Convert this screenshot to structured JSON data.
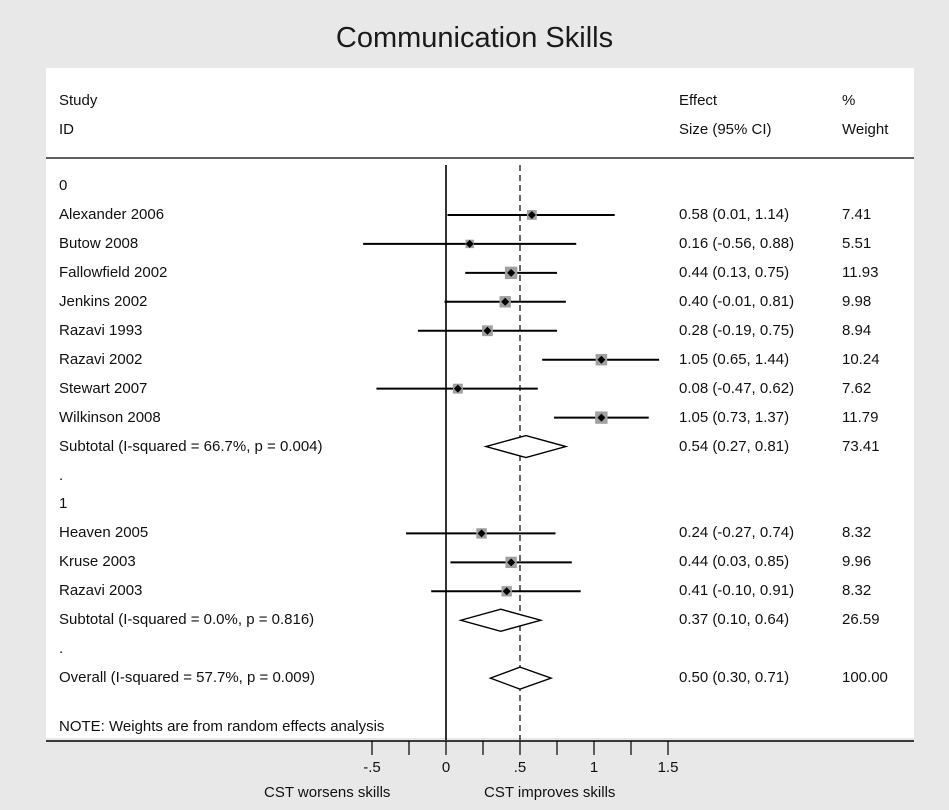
{
  "chart_data": {
    "type": "forest",
    "title": "Communication Skills",
    "headers": {
      "study": [
        "Study",
        "ID"
      ],
      "effect": [
        "Effect",
        "Size (95% CI)"
      ],
      "weight": [
        "%",
        "Weight"
      ]
    },
    "rows": [
      {
        "kind": "group",
        "label": "0"
      },
      {
        "kind": "study",
        "label": "Alexander 2006",
        "effect": 0.58,
        "lo": 0.01,
        "hi": 1.14,
        "ci_text": "0.58 (0.01, 1.14)",
        "weight": 7.41,
        "weight_text": "7.41"
      },
      {
        "kind": "study",
        "label": "Butow 2008",
        "effect": 0.16,
        "lo": -0.56,
        "hi": 0.88,
        "ci_text": "0.16 (-0.56, 0.88)",
        "weight": 5.51,
        "weight_text": "5.51"
      },
      {
        "kind": "study",
        "label": "Fallowfield 2002",
        "effect": 0.44,
        "lo": 0.13,
        "hi": 0.75,
        "ci_text": "0.44 (0.13, 0.75)",
        "weight": 11.93,
        "weight_text": "11.93"
      },
      {
        "kind": "study",
        "label": "Jenkins 2002",
        "effect": 0.4,
        "lo": -0.01,
        "hi": 0.81,
        "ci_text": "0.40 (-0.01, 0.81)",
        "weight": 9.98,
        "weight_text": "9.98"
      },
      {
        "kind": "study",
        "label": "Razavi 1993",
        "effect": 0.28,
        "lo": -0.19,
        "hi": 0.75,
        "ci_text": "0.28 (-0.19, 0.75)",
        "weight": 8.94,
        "weight_text": "8.94"
      },
      {
        "kind": "study",
        "label": "Razavi 2002",
        "effect": 1.05,
        "lo": 0.65,
        "hi": 1.44,
        "ci_text": "1.05 (0.65, 1.44)",
        "weight": 10.24,
        "weight_text": "10.24"
      },
      {
        "kind": "study",
        "label": "Stewart 2007",
        "effect": 0.08,
        "lo": -0.47,
        "hi": 0.62,
        "ci_text": "0.08 (-0.47, 0.62)",
        "weight": 7.62,
        "weight_text": "7.62"
      },
      {
        "kind": "study",
        "label": "Wilkinson 2008",
        "effect": 1.05,
        "lo": 0.73,
        "hi": 1.37,
        "ci_text": "1.05 (0.73, 1.37)",
        "weight": 11.79,
        "weight_text": "11.79"
      },
      {
        "kind": "subtotal",
        "label": "Subtotal  (I-squared = 66.7%, p = 0.004)",
        "effect": 0.54,
        "lo": 0.27,
        "hi": 0.81,
        "ci_text": "0.54 (0.27, 0.81)",
        "weight": 73.41,
        "weight_text": "73.41"
      },
      {
        "kind": "spacer",
        "label": "."
      },
      {
        "kind": "group",
        "label": "1"
      },
      {
        "kind": "study",
        "label": "Heaven 2005",
        "effect": 0.24,
        "lo": -0.27,
        "hi": 0.74,
        "ci_text": "0.24 (-0.27, 0.74)",
        "weight": 8.32,
        "weight_text": "8.32"
      },
      {
        "kind": "study",
        "label": "Kruse 2003",
        "effect": 0.44,
        "lo": 0.03,
        "hi": 0.85,
        "ci_text": "0.44 (0.03, 0.85)",
        "weight": 9.96,
        "weight_text": "9.96"
      },
      {
        "kind": "study",
        "label": "Razavi 2003",
        "effect": 0.41,
        "lo": -0.1,
        "hi": 0.91,
        "ci_text": "0.41 (-0.10, 0.91)",
        "weight": 8.32,
        "weight_text": "8.32"
      },
      {
        "kind": "subtotal",
        "label": "Subtotal  (I-squared = 0.0%, p = 0.816)",
        "effect": 0.37,
        "lo": 0.1,
        "hi": 0.64,
        "ci_text": "0.37 (0.10, 0.64)",
        "weight": 26.59,
        "weight_text": "26.59"
      },
      {
        "kind": "spacer",
        "label": "."
      },
      {
        "kind": "overall",
        "label": "Overall  (I-squared = 57.7%, p = 0.009)",
        "effect": 0.5,
        "lo": 0.3,
        "hi": 0.71,
        "ci_text": "0.50 (0.30, 0.71)",
        "weight": 100.0,
        "weight_text": "100.00"
      }
    ],
    "note": "NOTE: Weights are from random effects analysis",
    "x_ticks": [
      -0.5,
      0,
      0.5,
      1,
      1.5
    ],
    "x_tick_labels": [
      "-.5",
      "0",
      ".5",
      "1",
      "1.5"
    ],
    "x_minor_ticks": [
      -0.25,
      0.25,
      0.75,
      1.25
    ],
    "xlim": [
      -0.5,
      1.5
    ],
    "null_line": 0,
    "overall_reference_line": 0.5,
    "axis_labels": {
      "left": "CST worsens skills",
      "right": "CST improves skills"
    },
    "colors": {
      "background": "#e8e8e8",
      "plot_background": "#ffffff",
      "marker_box": "#a0a0a0",
      "ink": "#000000"
    }
  }
}
